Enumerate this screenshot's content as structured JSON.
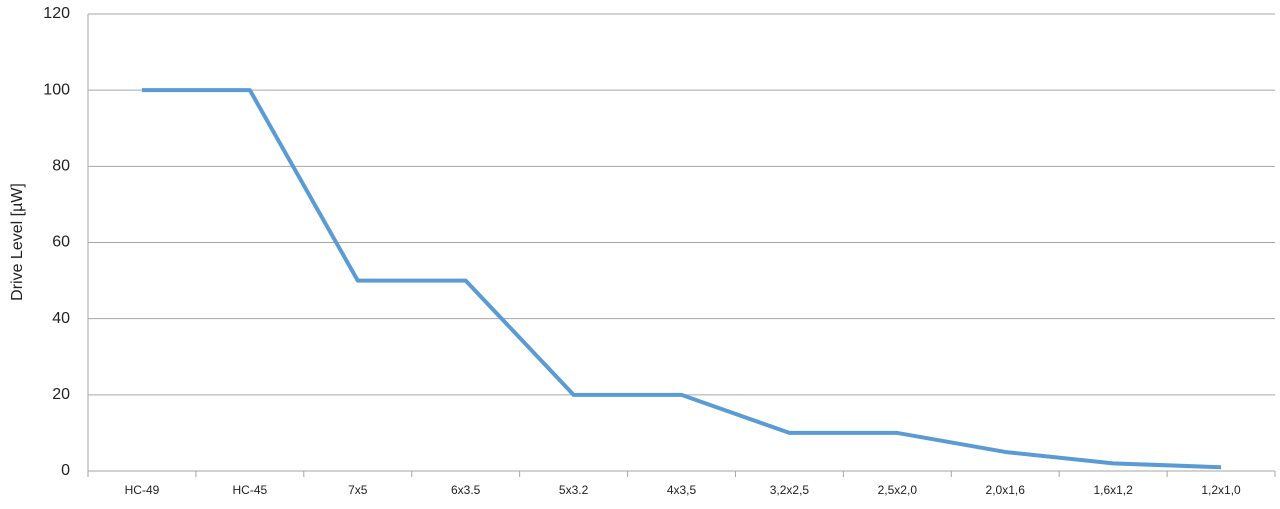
{
  "chart_data": {
    "type": "line",
    "ylabel": "Drive Level [µW]",
    "categories": [
      "HC-49",
      "HC-45",
      "7x5",
      "6x3.5",
      "5x3.2",
      "4x3,5",
      "3,2x2,5",
      "2,5x2,0",
      "2,0x1,6",
      "1,6x1,2",
      "1,2x1,0"
    ],
    "values": [
      100,
      100,
      50,
      50,
      20,
      20,
      10,
      10,
      5,
      2,
      1
    ],
    "color": "#5b9bd5",
    "ylim": [
      0,
      120
    ],
    "yticks": [
      0,
      20,
      40,
      60,
      80,
      100,
      120
    ],
    "grid": true
  }
}
